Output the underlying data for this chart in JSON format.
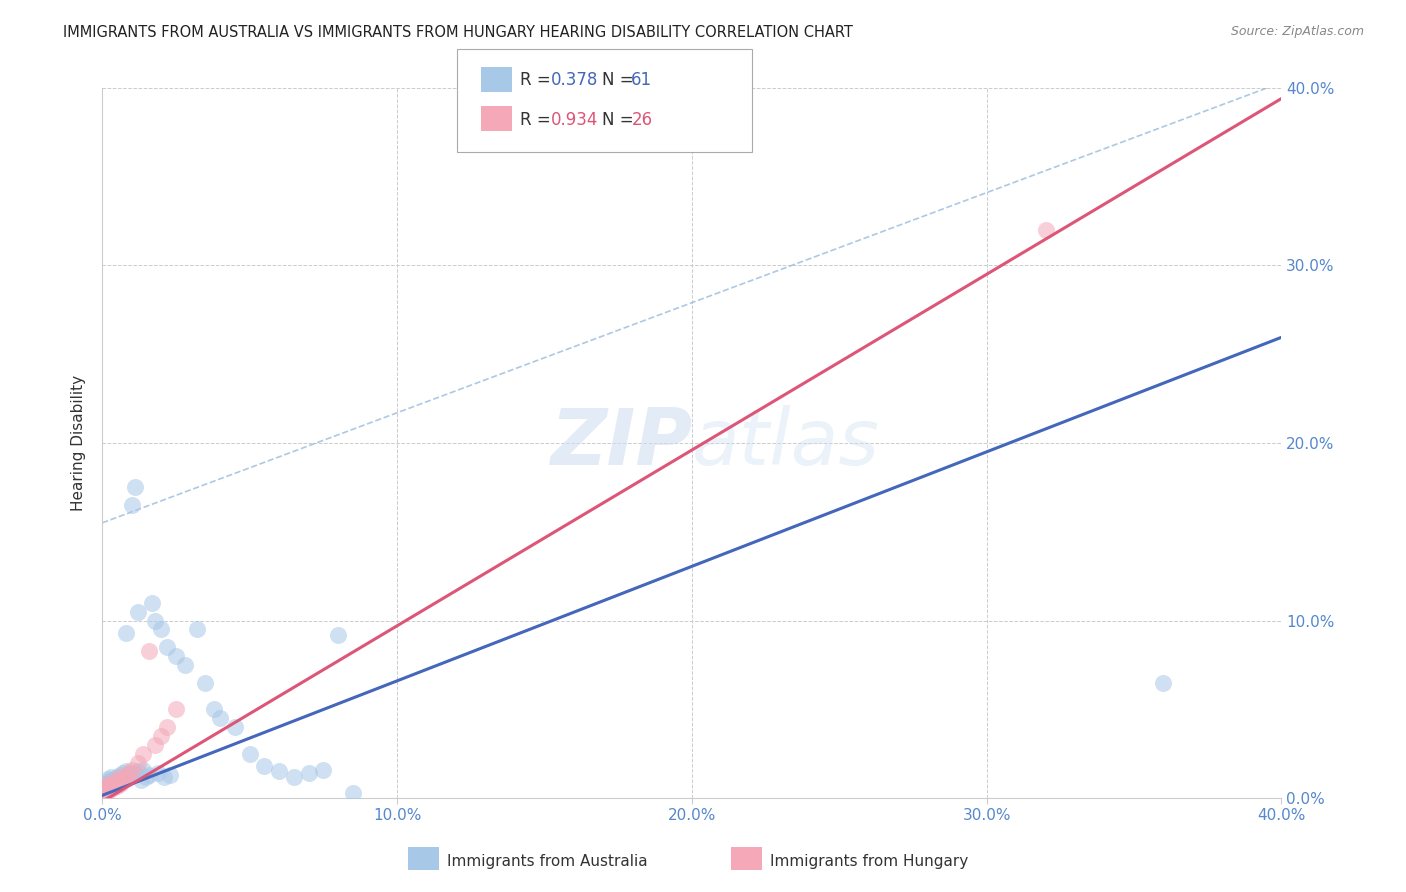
{
  "title": "IMMIGRANTS FROM AUSTRALIA VS IMMIGRANTS FROM HUNGARY HEARING DISABILITY CORRELATION CHART",
  "source": "Source: ZipAtlas.com",
  "ylabel": "Hearing Disability",
  "watermark_zip": "ZIP",
  "watermark_atlas": "atlas",
  "xlim": [
    0.0,
    0.4
  ],
  "ylim": [
    0.0,
    0.4
  ],
  "aus_color": "#a8c8e8",
  "hun_color": "#f4a8b8",
  "aus_line_color": "#4466bb",
  "hun_line_color": "#dd5577",
  "aus_dash_color": "#99bbdd",
  "background_color": "#ffffff",
  "grid_color": "#cccccc",
  "tick_label_color": "#5588cc",
  "australia_x": [
    0.001,
    0.001,
    0.001,
    0.002,
    0.002,
    0.002,
    0.002,
    0.003,
    0.003,
    0.003,
    0.003,
    0.004,
    0.004,
    0.004,
    0.005,
    0.005,
    0.005,
    0.006,
    0.006,
    0.006,
    0.007,
    0.007,
    0.007,
    0.008,
    0.008,
    0.008,
    0.009,
    0.009,
    0.01,
    0.01,
    0.011,
    0.011,
    0.012,
    0.012,
    0.013,
    0.014,
    0.015,
    0.016,
    0.017,
    0.018,
    0.019,
    0.02,
    0.021,
    0.022,
    0.023,
    0.025,
    0.028,
    0.032,
    0.035,
    0.038,
    0.04,
    0.045,
    0.05,
    0.055,
    0.06,
    0.065,
    0.07,
    0.075,
    0.08,
    0.085,
    0.36
  ],
  "australia_y": [
    0.004,
    0.006,
    0.008,
    0.005,
    0.007,
    0.009,
    0.011,
    0.006,
    0.008,
    0.01,
    0.012,
    0.007,
    0.009,
    0.011,
    0.008,
    0.01,
    0.012,
    0.009,
    0.011,
    0.013,
    0.01,
    0.012,
    0.014,
    0.011,
    0.093,
    0.015,
    0.012,
    0.014,
    0.013,
    0.165,
    0.014,
    0.175,
    0.015,
    0.105,
    0.01,
    0.016,
    0.012,
    0.013,
    0.11,
    0.1,
    0.014,
    0.095,
    0.012,
    0.085,
    0.013,
    0.08,
    0.075,
    0.095,
    0.065,
    0.05,
    0.045,
    0.04,
    0.025,
    0.018,
    0.015,
    0.012,
    0.014,
    0.016,
    0.092,
    0.003,
    0.065
  ],
  "hungary_x": [
    0.001,
    0.001,
    0.001,
    0.002,
    0.002,
    0.002,
    0.003,
    0.003,
    0.004,
    0.004,
    0.005,
    0.005,
    0.006,
    0.006,
    0.007,
    0.008,
    0.009,
    0.01,
    0.012,
    0.014,
    0.016,
    0.018,
    0.02,
    0.022,
    0.025,
    0.32
  ],
  "hungary_y": [
    0.003,
    0.005,
    0.007,
    0.004,
    0.006,
    0.008,
    0.005,
    0.007,
    0.006,
    0.009,
    0.007,
    0.01,
    0.008,
    0.012,
    0.01,
    0.012,
    0.014,
    0.016,
    0.02,
    0.025,
    0.083,
    0.03,
    0.035,
    0.04,
    0.05,
    0.32
  ],
  "aus_line_slope": 0.645,
  "aus_line_intercept": 0.0015,
  "hun_line_slope": 0.99,
  "hun_line_intercept": -0.002,
  "aus_dash_slope": 0.62,
  "aus_dash_intercept": 0.155
}
